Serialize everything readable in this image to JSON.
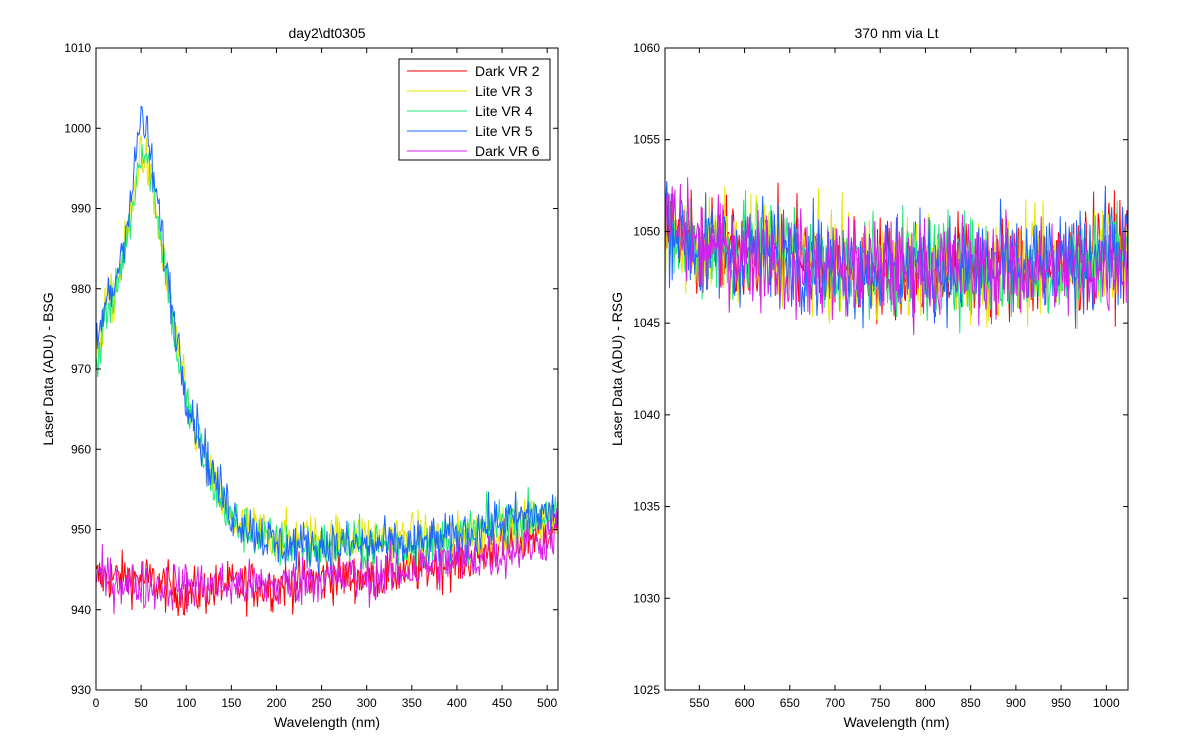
{
  "chart_data": [
    {
      "type": "line",
      "title": "day2\\dt0305",
      "xlabel": "Wavelength (nm)",
      "ylabel": "Laser Data (ADU) - BSG",
      "xlim": [
        0,
        512
      ],
      "ylim": [
        930,
        1010
      ],
      "xticks": [
        0,
        50,
        100,
        150,
        200,
        250,
        300,
        350,
        400,
        450,
        500
      ],
      "yticks": [
        930,
        940,
        950,
        960,
        970,
        980,
        990,
        1000,
        1010
      ],
      "legend": "top-right",
      "grid": false,
      "series": [
        {
          "name": "Dark VR 2",
          "color": "#ff0000",
          "x": [
            0,
            50,
            100,
            150,
            200,
            250,
            300,
            350,
            400,
            450,
            500,
            512
          ],
          "y": [
            944,
            944,
            942,
            943,
            943,
            944,
            944,
            945,
            946,
            948,
            950,
            951
          ]
        },
        {
          "name": "Lite VR 3",
          "color": "#e6e600",
          "x": [
            0,
            10,
            20,
            30,
            40,
            50,
            60,
            70,
            80,
            90,
            100,
            125,
            150,
            200,
            250,
            300,
            350,
            400,
            450,
            500,
            512
          ],
          "y": [
            970,
            978,
            979,
            984,
            990,
            998,
            994,
            987,
            980,
            973,
            966,
            957,
            951,
            949,
            949,
            949,
            949,
            949,
            950,
            951,
            951
          ]
        },
        {
          "name": "Lite VR 4",
          "color": "#1ee878",
          "x": [
            0,
            10,
            20,
            30,
            40,
            50,
            60,
            70,
            80,
            90,
            100,
            125,
            150,
            200,
            250,
            300,
            350,
            400,
            450,
            500,
            512
          ],
          "y": [
            970,
            977,
            978,
            984,
            990,
            998,
            995,
            988,
            980,
            972,
            966,
            957,
            951,
            948,
            948,
            948,
            948,
            949,
            951,
            952,
            952
          ]
        },
        {
          "name": "Lite VR 5",
          "color": "#1e64ff",
          "x": [
            0,
            10,
            20,
            30,
            40,
            50,
            60,
            70,
            80,
            90,
            100,
            125,
            150,
            200,
            250,
            300,
            350,
            400,
            450,
            500,
            512
          ],
          "y": [
            972,
            978,
            980,
            986,
            992,
            1002,
            997,
            989,
            981,
            974,
            967,
            958,
            952,
            948,
            948,
            948,
            948,
            949,
            951,
            952,
            952
          ]
        },
        {
          "name": "Dark VR 6",
          "color": "#d81ee8",
          "x": [
            0,
            50,
            100,
            150,
            200,
            250,
            300,
            350,
            400,
            450,
            500,
            512
          ],
          "y": [
            944,
            943,
            943,
            943,
            943,
            944,
            944,
            945,
            946,
            947,
            949,
            950
          ]
        }
      ]
    },
    {
      "type": "line",
      "title": "370 nm via Lt",
      "xlabel": "Wavelength (nm)",
      "ylabel": "Laser Data (ADU) - RSG",
      "xlim": [
        512,
        1024
      ],
      "ylim": [
        1025,
        1060
      ],
      "xticks": [
        550,
        600,
        650,
        700,
        750,
        800,
        850,
        900,
        950,
        1000
      ],
      "yticks": [
        1025,
        1030,
        1035,
        1040,
        1045,
        1050,
        1055,
        1060
      ],
      "grid": false,
      "series": [
        {
          "name": "Dark VR 2",
          "color": "#ff0000",
          "x": [
            512,
            550,
            600,
            650,
            700,
            750,
            800,
            850,
            900,
            950,
            1000,
            1024
          ],
          "y": [
            1050,
            1049,
            1049,
            1049,
            1048,
            1048,
            1048,
            1048,
            1048,
            1048,
            1049,
            1049
          ]
        },
        {
          "name": "Lite VR 3",
          "color": "#e6e600",
          "x": [
            512,
            550,
            600,
            650,
            700,
            750,
            800,
            850,
            900,
            950,
            1000,
            1024
          ],
          "y": [
            1050,
            1049,
            1049,
            1049,
            1048,
            1048,
            1048,
            1048,
            1048,
            1048,
            1049,
            1049
          ]
        },
        {
          "name": "Lite VR 4",
          "color": "#1ee878",
          "x": [
            512,
            550,
            600,
            650,
            700,
            750,
            800,
            850,
            900,
            950,
            1000,
            1024
          ],
          "y": [
            1050,
            1049,
            1049,
            1049,
            1048,
            1048,
            1048,
            1048,
            1048,
            1048,
            1049,
            1049
          ]
        },
        {
          "name": "Lite VR 5",
          "color": "#1e64ff",
          "x": [
            512,
            550,
            600,
            650,
            700,
            750,
            800,
            850,
            900,
            950,
            1000,
            1024
          ],
          "y": [
            1051,
            1049,
            1049,
            1049,
            1048,
            1048,
            1048,
            1048,
            1048,
            1048,
            1049,
            1049
          ]
        },
        {
          "name": "Dark VR 6",
          "color": "#d81ee8",
          "x": [
            512,
            550,
            600,
            650,
            700,
            750,
            800,
            850,
            900,
            950,
            1000,
            1024
          ],
          "y": [
            1051,
            1049,
            1049,
            1048,
            1048,
            1048,
            1048,
            1048,
            1048,
            1048,
            1048,
            1049
          ]
        }
      ]
    }
  ]
}
